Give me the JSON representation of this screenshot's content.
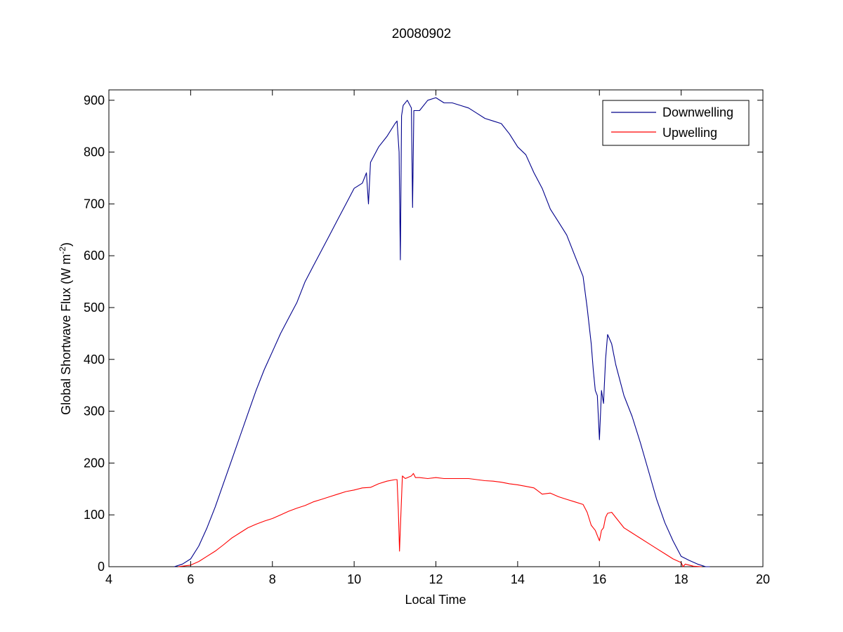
{
  "chart_data": {
    "type": "line",
    "title": "20080902",
    "xlabel": "Local Time",
    "ylabel": "Global Shortwave Flux (W m",
    "ylabel_sup": "-2",
    "ylabel_close": ")",
    "xlim": [
      4,
      20
    ],
    "ylim": [
      0,
      920
    ],
    "xticks": [
      4,
      6,
      8,
      10,
      12,
      14,
      16,
      18,
      20
    ],
    "yticks": [
      0,
      100,
      200,
      300,
      400,
      500,
      600,
      700,
      800,
      900
    ],
    "grid": false,
    "legend_position": "top-right",
    "series": [
      {
        "name": "Downwelling",
        "color": "#00008b",
        "x": [
          5.6,
          5.8,
          6.0,
          6.2,
          6.4,
          6.6,
          6.8,
          7.0,
          7.2,
          7.4,
          7.6,
          7.8,
          8.0,
          8.2,
          8.4,
          8.6,
          8.8,
          9.0,
          9.2,
          9.4,
          9.6,
          9.8,
          10.0,
          10.2,
          10.3,
          10.35,
          10.4,
          10.6,
          10.8,
          11.0,
          11.05,
          11.1,
          11.13,
          11.16,
          11.2,
          11.3,
          11.4,
          11.43,
          11.46,
          11.5,
          11.6,
          11.8,
          12.0,
          12.2,
          12.4,
          12.6,
          12.8,
          13.0,
          13.2,
          13.4,
          13.6,
          13.8,
          14.0,
          14.2,
          14.4,
          14.6,
          14.8,
          15.0,
          15.2,
          15.4,
          15.6,
          15.7,
          15.8,
          15.85,
          15.9,
          15.95,
          16.0,
          16.05,
          16.1,
          16.15,
          16.2,
          16.3,
          16.4,
          16.6,
          16.8,
          17.0,
          17.2,
          17.4,
          17.6,
          17.8,
          18.0,
          18.2,
          18.4,
          18.6,
          18.7
        ],
        "y": [
          0,
          5,
          15,
          40,
          75,
          115,
          160,
          205,
          250,
          295,
          340,
          380,
          415,
          450,
          480,
          510,
          550,
          580,
          610,
          640,
          670,
          700,
          730,
          740,
          760,
          700,
          780,
          810,
          830,
          855,
          860,
          800,
          592,
          870,
          890,
          900,
          885,
          693,
          880,
          880,
          880,
          900,
          905,
          895,
          895,
          890,
          885,
          875,
          865,
          860,
          855,
          835,
          810,
          795,
          760,
          730,
          690,
          665,
          640,
          600,
          560,
          500,
          430,
          380,
          340,
          330,
          245,
          340,
          315,
          400,
          448,
          430,
          390,
          330,
          290,
          240,
          185,
          130,
          85,
          50,
          20,
          12,
          5,
          0,
          0
        ]
      },
      {
        "name": "Upwelling",
        "color": "#ff0000",
        "x": [
          5.7,
          6.0,
          6.2,
          6.4,
          6.6,
          6.8,
          7.0,
          7.2,
          7.4,
          7.6,
          7.8,
          8.0,
          8.2,
          8.4,
          8.6,
          8.8,
          9.0,
          9.2,
          9.4,
          9.6,
          9.8,
          10.0,
          10.2,
          10.4,
          10.6,
          10.8,
          11.0,
          11.05,
          11.08,
          11.11,
          11.14,
          11.18,
          11.25,
          11.4,
          11.45,
          11.5,
          11.6,
          11.8,
          12.0,
          12.2,
          12.4,
          12.6,
          12.8,
          13.0,
          13.2,
          13.4,
          13.6,
          13.8,
          14.0,
          14.2,
          14.4,
          14.6,
          14.8,
          15.0,
          15.2,
          15.4,
          15.6,
          15.7,
          15.8,
          15.9,
          15.95,
          16.0,
          16.05,
          16.1,
          16.15,
          16.2,
          16.3,
          16.4,
          16.6,
          16.8,
          17.0,
          17.2,
          17.4,
          17.6,
          17.8,
          18.0,
          18.05,
          18.1,
          18.3,
          18.5
        ],
        "y": [
          0,
          3,
          10,
          20,
          30,
          42,
          55,
          65,
          75,
          82,
          88,
          93,
          100,
          107,
          113,
          118,
          125,
          130,
          135,
          140,
          145,
          148,
          152,
          153,
          160,
          165,
          168,
          168,
          110,
          30,
          95,
          175,
          170,
          175,
          180,
          172,
          172,
          170,
          172,
          170,
          170,
          170,
          170,
          168,
          166,
          165,
          163,
          160,
          158,
          155,
          152,
          140,
          142,
          135,
          130,
          125,
          120,
          105,
          80,
          70,
          60,
          50,
          70,
          75,
          95,
          103,
          105,
          95,
          75,
          65,
          55,
          45,
          35,
          25,
          15,
          8,
          0,
          5,
          1,
          0
        ]
      }
    ]
  }
}
